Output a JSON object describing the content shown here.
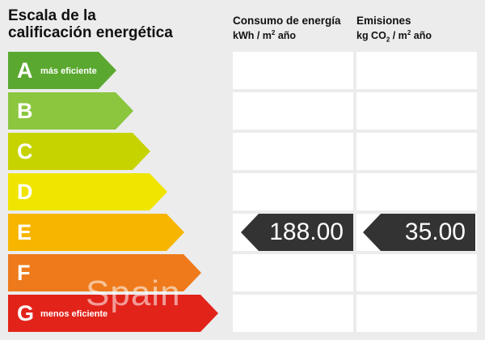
{
  "title": {
    "line1": "Escala de la",
    "line2": "calificación energética"
  },
  "columns": {
    "consumo": {
      "label": "Consumo de energía",
      "unit_prefix": "kWh / m",
      "unit_sup": "2",
      "unit_suffix": " año"
    },
    "emisiones": {
      "label": "Emisiones",
      "unit_prefix": "kg CO",
      "unit_sub": "2",
      "unit_mid": " / m",
      "unit_sup": "2",
      "unit_suffix": " año"
    }
  },
  "ratings": [
    {
      "letter": "A",
      "note": "más eficiente",
      "color": "#5aa830"
    },
    {
      "letter": "B",
      "note": "",
      "color": "#8cc63f"
    },
    {
      "letter": "C",
      "note": "",
      "color": "#c6d300"
    },
    {
      "letter": "D",
      "note": "",
      "color": "#f0e500"
    },
    {
      "letter": "E",
      "note": "",
      "color": "#f7b500"
    },
    {
      "letter": "F",
      "note": "",
      "color": "#ee7a1b"
    },
    {
      "letter": "G",
      "note": "menos eficiente",
      "color": "#e2231a"
    }
  ],
  "result": {
    "rating": "E",
    "consumo_value": "188.00",
    "emisiones_value": "35.00",
    "tag_color": "#333333"
  },
  "watermark": "Spain"
}
